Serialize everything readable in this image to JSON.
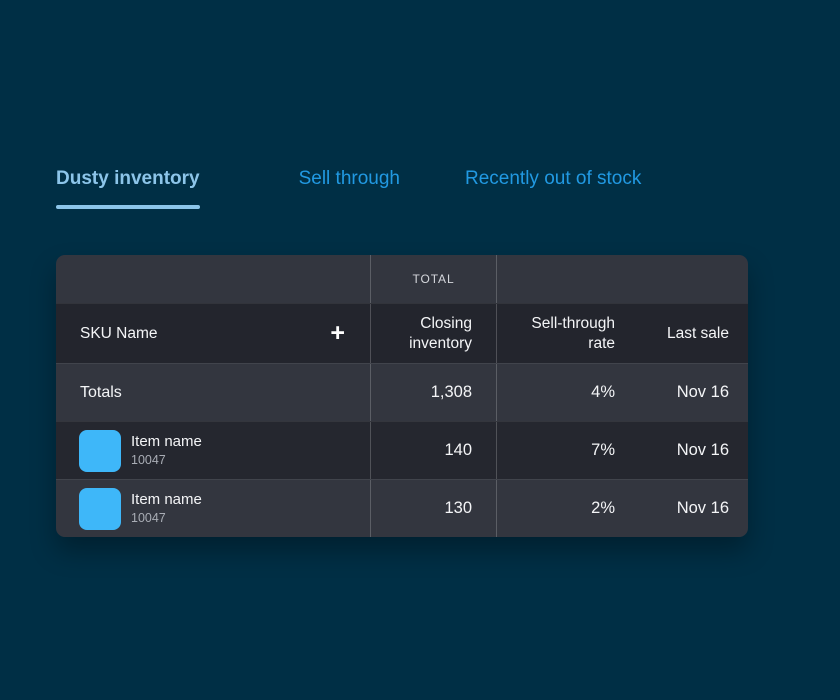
{
  "tabs": [
    {
      "label": "Dusty inventory",
      "active": true
    },
    {
      "label": "Sell through",
      "active": false
    },
    {
      "label": "Recently out of stock",
      "active": false
    }
  ],
  "table": {
    "group_header": "TOTAL",
    "columns": [
      "SKU Name",
      "Closing inventory",
      "Sell-through rate",
      "Last sale"
    ],
    "add_icon": "+",
    "totals_row": {
      "label": "Totals",
      "closing_inventory": "1,308",
      "sell_through_rate": "4%",
      "last_sale": "Nov 16"
    },
    "rows": [
      {
        "name": "Item name",
        "sku": "10047",
        "closing_inventory": "140",
        "sell_through_rate": "7%",
        "last_sale": "Nov 16"
      },
      {
        "name": "Item name",
        "sku": "10047",
        "closing_inventory": "130",
        "sell_through_rate": "2%",
        "last_sale": "Nov 16"
      }
    ]
  },
  "colors": {
    "page-bg": "#002f45",
    "tab-active": "#8cc5e9",
    "tab-inactive": "#2199e2",
    "row-light": "#33363f",
    "row-dark": "#25272f",
    "header-dark": "#23252d",
    "thumb-blue": "#3eb7f9"
  }
}
